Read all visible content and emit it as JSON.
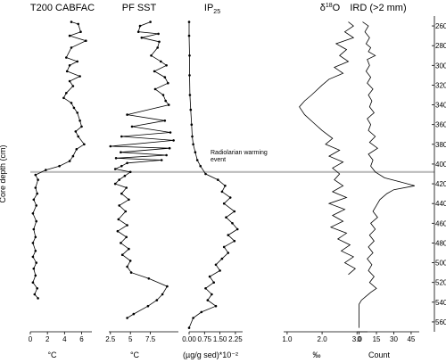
{
  "chart_data": {
    "type": "line",
    "y_axis": {
      "label": "Core depth (cm)",
      "range": [
        250,
        570
      ],
      "inverted": true,
      "ticks": [
        260,
        280,
        300,
        320,
        340,
        360,
        380,
        400,
        420,
        440,
        460,
        480,
        500,
        520,
        540,
        560
      ]
    },
    "annotation": {
      "depth": 408,
      "line1": "Radiolarian warming",
      "line2": "event",
      "color": "#bbbbbb"
    },
    "panels": [
      {
        "id": "t200",
        "title": "T200 CABFAC",
        "title_sub": "",
        "title_after": "",
        "unit": "°C",
        "xlim": [
          0,
          7.2
        ],
        "ticks": [
          0,
          2,
          4,
          6
        ],
        "tick_labels": [
          "0",
          "2",
          "4",
          "6"
        ],
        "markers": true,
        "points": [
          [
            4.8,
            256
          ],
          [
            5.6,
            258
          ],
          [
            5.9,
            266
          ],
          [
            4.6,
            270
          ],
          [
            6.5,
            275
          ],
          [
            4.8,
            282
          ],
          [
            4.2,
            292
          ],
          [
            5.5,
            296
          ],
          [
            4.6,
            300
          ],
          [
            4.3,
            306
          ],
          [
            5.8,
            311
          ],
          [
            4.6,
            316
          ],
          [
            5.0,
            321
          ],
          [
            4.2,
            328
          ],
          [
            3.9,
            333
          ],
          [
            4.8,
            338
          ],
          [
            5.1,
            343
          ],
          [
            5.5,
            348
          ],
          [
            5.8,
            356
          ],
          [
            6.0,
            362
          ],
          [
            5.3,
            367
          ],
          [
            5.6,
            372
          ],
          [
            6.3,
            380
          ],
          [
            5.4,
            385
          ],
          [
            5.0,
            392
          ],
          [
            4.6,
            397
          ],
          [
            3.4,
            402
          ],
          [
            1.8,
            406
          ],
          [
            0.6,
            411
          ],
          [
            0.9,
            416
          ],
          [
            0.6,
            424
          ],
          [
            0.8,
            430
          ],
          [
            0.4,
            436
          ],
          [
            0.7,
            442
          ],
          [
            0.3,
            450
          ],
          [
            0.7,
            458
          ],
          [
            0.4,
            466
          ],
          [
            0.6,
            474
          ],
          [
            0.3,
            480
          ],
          [
            0.6,
            488
          ],
          [
            0.3,
            494
          ],
          [
            0.7,
            500
          ],
          [
            0.4,
            506
          ],
          [
            0.6,
            513
          ],
          [
            0.3,
            520
          ],
          [
            0.8,
            526
          ],
          [
            0.5,
            532
          ],
          [
            0.9,
            536
          ]
        ]
      },
      {
        "id": "pfsst",
        "title": "PF SST",
        "title_sub": "",
        "title_after": "",
        "unit": "°C",
        "xlim": [
          2.3,
          11
        ],
        "ticks": [
          2.5,
          5,
          7.5
        ],
        "tick_labels": [
          "2.5",
          "5",
          "7.5"
        ],
        "markers": true,
        "points": [
          [
            7.5,
            256
          ],
          [
            6.2,
            260
          ],
          [
            6.0,
            266
          ],
          [
            8.5,
            268
          ],
          [
            6.4,
            272
          ],
          [
            8.6,
            276
          ],
          [
            8.4,
            282
          ],
          [
            7.6,
            290
          ],
          [
            8.8,
            296
          ],
          [
            9.5,
            300
          ],
          [
            8.0,
            306
          ],
          [
            9.3,
            312
          ],
          [
            9.7,
            318
          ],
          [
            8.1,
            324
          ],
          [
            9.1,
            330
          ],
          [
            9.4,
            336
          ],
          [
            9.8,
            340
          ],
          [
            4.6,
            350
          ],
          [
            9.3,
            356
          ],
          [
            5.2,
            362
          ],
          [
            10.0,
            368
          ],
          [
            3.9,
            372
          ],
          [
            10.4,
            376
          ],
          [
            2.5,
            382
          ],
          [
            9.9,
            384
          ],
          [
            3.8,
            388
          ],
          [
            9.5,
            391
          ],
          [
            3.2,
            394
          ],
          [
            8.9,
            396
          ],
          [
            4.6,
            399
          ],
          [
            3.9,
            402
          ],
          [
            3.1,
            405
          ],
          [
            5.0,
            408
          ],
          [
            4.3,
            412
          ],
          [
            3.6,
            416
          ],
          [
            3.1,
            420
          ],
          [
            4.5,
            424
          ],
          [
            3.9,
            430
          ],
          [
            4.8,
            436
          ],
          [
            3.6,
            442
          ],
          [
            4.4,
            448
          ],
          [
            3.5,
            456
          ],
          [
            4.6,
            462
          ],
          [
            3.4,
            468
          ],
          [
            4.5,
            474
          ],
          [
            3.8,
            480
          ],
          [
            4.8,
            486
          ],
          [
            4.0,
            492
          ],
          [
            5.0,
            498
          ],
          [
            4.6,
            504
          ],
          [
            5.1,
            510
          ],
          [
            7.3,
            516
          ],
          [
            9.6,
            524
          ],
          [
            9.0,
            532
          ],
          [
            8.3,
            538
          ],
          [
            7.2,
            544
          ],
          [
            5.4,
            552
          ],
          [
            4.6,
            556
          ]
        ]
      },
      {
        "id": "ip25",
        "title": "IP",
        "title_sub": "25",
        "title_after": "",
        "unit": "(µg/g sed)*10⁻²",
        "xlim": [
          0,
          2.6
        ],
        "ticks": [
          0,
          0.75,
          1.5,
          2.25
        ],
        "tick_labels": [
          "0.00",
          "0.75",
          "1.50",
          "2.25"
        ],
        "markers": true,
        "points": [
          [
            0.0,
            256
          ],
          [
            0.0,
            270
          ],
          [
            0.02,
            290
          ],
          [
            0.02,
            310
          ],
          [
            0.04,
            330
          ],
          [
            0.08,
            345
          ],
          [
            0.12,
            360
          ],
          [
            0.15,
            372
          ],
          [
            0.2,
            380
          ],
          [
            0.3,
            388
          ],
          [
            0.4,
            396
          ],
          [
            0.55,
            402
          ],
          [
            0.8,
            410
          ],
          [
            1.4,
            416
          ],
          [
            1.75,
            422
          ],
          [
            1.6,
            428
          ],
          [
            2.0,
            434
          ],
          [
            1.7,
            440
          ],
          [
            2.2,
            448
          ],
          [
            1.8,
            454
          ],
          [
            2.1,
            460
          ],
          [
            2.35,
            466
          ],
          [
            1.9,
            472
          ],
          [
            2.2,
            478
          ],
          [
            1.7,
            484
          ],
          [
            1.9,
            490
          ],
          [
            1.6,
            496
          ],
          [
            1.3,
            502
          ],
          [
            1.5,
            508
          ],
          [
            1.0,
            514
          ],
          [
            1.2,
            520
          ],
          [
            0.8,
            526
          ],
          [
            1.1,
            532
          ],
          [
            0.9,
            538
          ],
          [
            1.3,
            544
          ],
          [
            0.6,
            550
          ],
          [
            0.2,
            556
          ],
          [
            0.0,
            566
          ]
        ]
      },
      {
        "id": "d18o",
        "title": "δ",
        "title_sup": "18",
        "title_after": "O",
        "unit": "‰",
        "xlim": [
          0.9,
          3.3
        ],
        "ticks": [
          1.0,
          2.0,
          3.0
        ],
        "tick_labels": [
          "1.0",
          "2.0",
          "3.0"
        ],
        "markers": false,
        "points": [
          [
            2.75,
            256
          ],
          [
            2.9,
            260
          ],
          [
            2.65,
            266
          ],
          [
            2.9,
            272
          ],
          [
            2.4,
            278
          ],
          [
            2.7,
            284
          ],
          [
            2.5,
            290
          ],
          [
            2.75,
            296
          ],
          [
            2.35,
            302
          ],
          [
            2.6,
            308
          ],
          [
            2.2,
            314
          ],
          [
            2.0,
            320
          ],
          [
            1.7,
            330
          ],
          [
            1.5,
            336
          ],
          [
            1.35,
            342
          ],
          [
            1.5,
            350
          ],
          [
            1.75,
            358
          ],
          [
            2.0,
            366
          ],
          [
            2.3,
            374
          ],
          [
            2.1,
            380
          ],
          [
            2.5,
            386
          ],
          [
            2.2,
            392
          ],
          [
            2.6,
            398
          ],
          [
            2.3,
            404
          ],
          [
            2.5,
            410
          ],
          [
            2.35,
            416
          ],
          [
            2.6,
            422
          ],
          [
            2.3,
            428
          ],
          [
            2.7,
            434
          ],
          [
            2.2,
            440
          ],
          [
            2.65,
            446
          ],
          [
            2.3,
            452
          ],
          [
            2.6,
            458
          ],
          [
            2.25,
            464
          ],
          [
            2.7,
            470
          ],
          [
            2.45,
            476
          ],
          [
            2.8,
            482
          ],
          [
            2.55,
            488
          ],
          [
            2.9,
            494
          ],
          [
            2.65,
            500
          ],
          [
            2.95,
            506
          ],
          [
            2.75,
            512
          ]
        ]
      },
      {
        "id": "ird",
        "title": "IRD (>2 mm)",
        "title_sub": "",
        "title_after": "",
        "unit": "Count",
        "xlim": [
          -2,
          52
        ],
        "ticks": [
          0,
          15,
          30,
          45
        ],
        "tick_labels": [
          "0",
          "15",
          "30",
          "45"
        ],
        "markers": false,
        "points": [
          [
            3,
            256
          ],
          [
            8,
            260
          ],
          [
            5,
            266
          ],
          [
            9,
            272
          ],
          [
            6,
            278
          ],
          [
            10,
            282
          ],
          [
            8,
            286
          ],
          [
            14,
            290
          ],
          [
            7,
            294
          ],
          [
            9,
            300
          ],
          [
            6,
            306
          ],
          [
            10,
            312
          ],
          [
            7,
            318
          ],
          [
            12,
            324
          ],
          [
            8,
            330
          ],
          [
            11,
            336
          ],
          [
            9,
            342
          ],
          [
            13,
            348
          ],
          [
            7,
            354
          ],
          [
            10,
            360
          ],
          [
            8,
            366
          ],
          [
            14,
            372
          ],
          [
            9,
            378
          ],
          [
            16,
            384
          ],
          [
            8,
            390
          ],
          [
            12,
            396
          ],
          [
            10,
            402
          ],
          [
            14,
            408
          ],
          [
            22,
            414
          ],
          [
            35,
            418
          ],
          [
            48,
            422
          ],
          [
            30,
            426
          ],
          [
            24,
            430
          ],
          [
            18,
            436
          ],
          [
            15,
            442
          ],
          [
            12,
            448
          ],
          [
            16,
            454
          ],
          [
            10,
            460
          ],
          [
            14,
            466
          ],
          [
            9,
            472
          ],
          [
            13,
            478
          ],
          [
            8,
            484
          ],
          [
            12,
            490
          ],
          [
            7,
            496
          ],
          [
            11,
            502
          ],
          [
            8,
            508
          ],
          [
            13,
            514
          ],
          [
            9,
            520
          ],
          [
            15,
            526
          ],
          [
            10,
            530
          ],
          [
            6,
            534
          ],
          [
            2,
            538
          ],
          [
            0,
            542
          ],
          [
            0,
            566
          ]
        ]
      }
    ]
  }
}
